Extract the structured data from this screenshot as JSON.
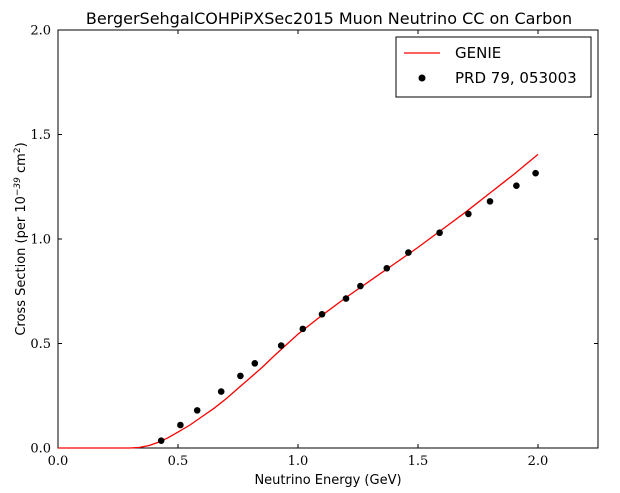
{
  "chart_data": {
    "type": "scatter",
    "title": "BergerSehgalCOHPiPXSec2015 Muon Neutrino CC on Carbon",
    "xlabel": "Neutrino Energy (GeV)",
    "ylabel_prefix": "Cross Section (per 10",
    "ylabel_exponent": "−39",
    "ylabel_unit": " cm",
    "ylabel_unit_exponent": "2",
    "ylabel_suffix": ")",
    "xlim": [
      0.0,
      2.25
    ],
    "ylim": [
      0.0,
      2.0
    ],
    "xticks": [
      0.0,
      0.5,
      1.0,
      1.5,
      2.0
    ],
    "xtick_labels": [
      "0.0",
      "0.5",
      "1.0",
      "1.5",
      "2.0"
    ],
    "yticks": [
      0.0,
      0.5,
      1.0,
      1.5,
      2.0
    ],
    "ytick_labels": [
      "0.0",
      "0.5",
      "1.0",
      "1.5",
      "2.0"
    ],
    "grid": false,
    "legend_position": "top-right",
    "series": [
      {
        "name": "GENIE",
        "kind": "line",
        "color": "#ff0000",
        "x": [
          0.0,
          0.3,
          0.34,
          0.38,
          0.42,
          0.46,
          0.5,
          0.55,
          0.6,
          0.65,
          0.7,
          0.75,
          0.8,
          0.85,
          0.9,
          1.0,
          1.1,
          1.2,
          1.3,
          1.4,
          1.5,
          1.6,
          1.7,
          1.8,
          1.9,
          2.0
        ],
        "y": [
          0.0,
          0.0,
          0.003,
          0.012,
          0.028,
          0.05,
          0.076,
          0.11,
          0.15,
          0.19,
          0.235,
          0.285,
          0.335,
          0.385,
          0.44,
          0.545,
          0.635,
          0.72,
          0.8,
          0.88,
          0.96,
          1.045,
          1.13,
          1.22,
          1.31,
          1.405
        ]
      },
      {
        "name": "PRD 79, 053003",
        "kind": "scatter",
        "color": "#000000",
        "x": [
          0.43,
          0.51,
          0.58,
          0.68,
          0.76,
          0.82,
          0.93,
          1.02,
          1.1,
          1.2,
          1.26,
          1.37,
          1.46,
          1.59,
          1.71,
          1.8,
          1.91,
          1.99
        ],
        "y": [
          0.035,
          0.11,
          0.18,
          0.27,
          0.345,
          0.405,
          0.49,
          0.57,
          0.64,
          0.715,
          0.775,
          0.86,
          0.935,
          1.03,
          1.12,
          1.18,
          1.255,
          1.315
        ]
      }
    ]
  }
}
